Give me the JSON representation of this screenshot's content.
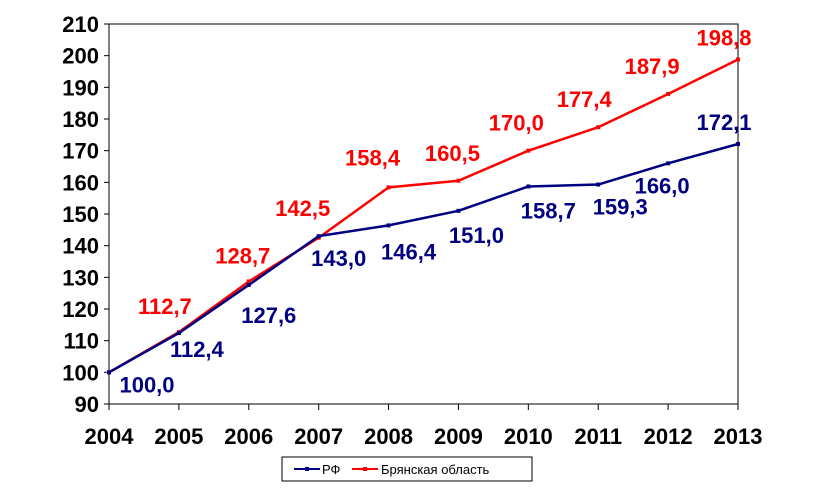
{
  "chart_data": {
    "type": "line",
    "title": "",
    "xlabel": "",
    "ylabel": "",
    "x": [
      "2004",
      "2005",
      "2006",
      "2007",
      "2008",
      "2009",
      "2010",
      "2011",
      "2012",
      "2013"
    ],
    "ylim": [
      90,
      210
    ],
    "y_ticks": [
      90,
      100,
      110,
      120,
      130,
      140,
      150,
      160,
      170,
      180,
      190,
      200,
      210
    ],
    "y_tick_labels": [
      "90",
      "100",
      "110",
      "120",
      "130",
      "140",
      "150",
      "160",
      "170",
      "180",
      "190",
      "200",
      "210"
    ],
    "grid": false,
    "legend_position": "bottom",
    "series": [
      {
        "name": "РФ",
        "color": "#000080",
        "values": [
          100.0,
          112.4,
          127.6,
          143.0,
          146.4,
          151.0,
          158.7,
          159.3,
          166.0,
          172.1
        ],
        "labels": [
          "100,0",
          "112,4",
          "127,6",
          "143,0",
          "146,4",
          "151,0",
          "158,7",
          "159,3",
          "166,0",
          "172,1"
        ]
      },
      {
        "name": "Брянская область",
        "color": "#ff0000",
        "values": [
          100.0,
          112.7,
          128.7,
          142.5,
          158.4,
          160.5,
          170.0,
          177.4,
          187.9,
          198.8
        ],
        "labels": [
          "",
          "112,7",
          "128,7",
          "142,5",
          "158,4",
          "160,5",
          "170,0",
          "177,4",
          "187,9",
          "198,8"
        ]
      }
    ]
  }
}
